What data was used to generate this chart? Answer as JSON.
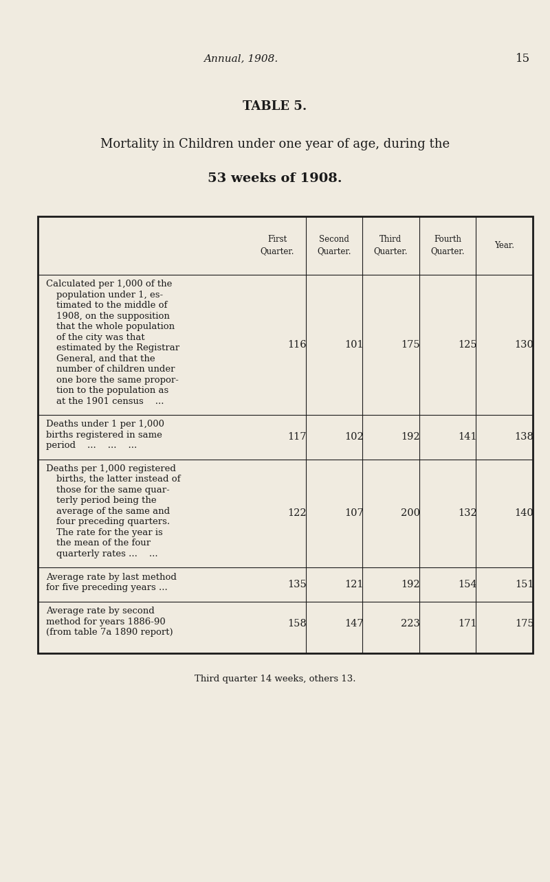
{
  "bg_color": "#f0ebe0",
  "header_italic": "Annual, 1908.",
  "page_number": "15",
  "table_title_line1": "TABLE 5.",
  "table_title_line2": "Mortality in Children under one year of age, during the",
  "table_title_line3": "53 weeks of 1908.",
  "col_headers": [
    "First\nQuarter.",
    "Second\nQuarter.",
    "Third\nQuarter.",
    "Fourth\nQuarter.",
    "Year."
  ],
  "rows": [
    {
      "label_lines": [
        "Calculated per 1,000 of the",
        "population under 1, es-",
        "timated to the middle of",
        "1908, on the supposition",
        "that the whole population",
        "of the city was that",
        "estimated by the Registrar",
        "General, and that the",
        "number of children under",
        "one bore the same propor-",
        "tion to the population as",
        "at the 1901 census    ..."
      ],
      "values": [
        "116",
        "101",
        "175",
        "125",
        "130"
      ]
    },
    {
      "label_lines": [
        "Deaths under 1 per 1,000",
        "births registered in same",
        "period    ...    ...    ..."
      ],
      "values": [
        "117",
        "102",
        "192",
        "141",
        "138"
      ]
    },
    {
      "label_lines": [
        "Deaths per 1,000 registered",
        "births, the latter instead of",
        "those for the same quar-",
        "terly period being the",
        "average of the same and",
        "four preceding quarters.",
        "The rate for the year is",
        "the mean of the four",
        "quarterly rates ...    ..."
      ],
      "values": [
        "122",
        "107",
        "200",
        "132",
        "140"
      ]
    },
    {
      "label_lines": [
        "Average rate by last method",
        "for five preceding years ..."
      ],
      "values": [
        "135",
        "121",
        "192",
        "154",
        "151"
      ]
    },
    {
      "label_lines": [
        "Average rate by second",
        "method for years 1886-90",
        "(from table 7a 1890 report)"
      ],
      "values": [
        "158",
        "147",
        "223",
        "171",
        "175"
      ]
    }
  ],
  "footnote": "Third quarter 14 weeks, others 13.",
  "text_color": "#1a1a1a",
  "line_color": "#1a1a1a"
}
